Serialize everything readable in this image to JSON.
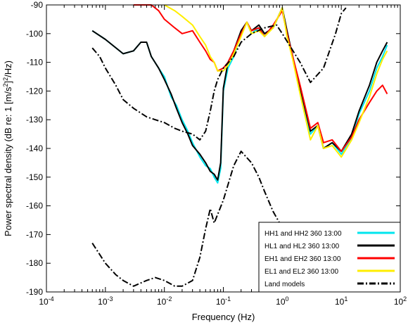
{
  "chart_data": {
    "type": "line",
    "xlabel": "Frequency (Hz)",
    "ylabel": "Power spectral density (dB re: 1 [m/s",
    "ylabel_sup": "2",
    "ylabel_tail": "]",
    "ylabel_sup2": "2",
    "ylabel_end": "/Hz)",
    "x_scale": "log",
    "xlim": [
      0.0001,
      100
    ],
    "ylim": [
      -190,
      -90
    ],
    "x_ticks": [
      {
        "base": "10",
        "exp": "-4"
      },
      {
        "base": "10",
        "exp": "-3"
      },
      {
        "base": "10",
        "exp": "-2"
      },
      {
        "base": "10",
        "exp": "-1"
      },
      {
        "base": "10",
        "exp": "0"
      },
      {
        "base": "10",
        "exp": "1"
      },
      {
        "base": "10",
        "exp": "2"
      }
    ],
    "y_ticks": [
      "-90",
      "-100",
      "-110",
      "-120",
      "-130",
      "-140",
      "-150",
      "-160",
      "-170",
      "-180",
      "-190"
    ],
    "grid": false,
    "legend_position": "bottom-right",
    "series": [
      {
        "name": "HH1 and HH2 360 13:00",
        "color": "#00e5ee",
        "style": "solid",
        "x": [
          0.0006,
          0.001,
          0.002,
          0.003,
          0.004,
          0.005,
          0.006,
          0.008,
          0.01,
          0.013,
          0.016,
          0.02,
          0.025,
          0.03,
          0.04,
          0.05,
          0.06,
          0.07,
          0.08,
          0.09,
          0.1,
          0.12,
          0.15,
          0.2,
          0.25,
          0.3,
          0.4,
          0.5,
          0.7,
          1.0,
          1.2,
          1.5,
          2.0,
          3.0,
          4.0,
          5.0,
          7.0,
          10.0,
          15.0,
          20.0,
          30.0,
          40.0,
          50.0,
          60.0
        ],
        "y": [
          -99,
          -102,
          -107,
          -106,
          -103,
          -103,
          -108,
          -112,
          -115,
          -122,
          -125,
          -130,
          -134,
          -138,
          -143,
          -146,
          -147,
          -150,
          -152,
          -147,
          -120,
          -112,
          -108,
          -100,
          -96,
          -100,
          -98,
          -100,
          -98,
          -91,
          -100,
          -108,
          -120,
          -135,
          -132,
          -140,
          -138,
          -142,
          -136,
          -128,
          -120,
          -112,
          -108,
          -104
        ]
      },
      {
        "name": "HL1 and HL2 360 13:00",
        "color": "#000000",
        "style": "solid",
        "x": [
          0.0006,
          0.001,
          0.002,
          0.003,
          0.004,
          0.005,
          0.006,
          0.008,
          0.01,
          0.013,
          0.016,
          0.02,
          0.025,
          0.03,
          0.04,
          0.05,
          0.06,
          0.07,
          0.08,
          0.09,
          0.1,
          0.12,
          0.15,
          0.2,
          0.25,
          0.3,
          0.4,
          0.5,
          0.7,
          1.0,
          1.2,
          1.5,
          2.0,
          3.0,
          4.0,
          5.0,
          7.0,
          10.0,
          15.0,
          20.0,
          30.0,
          40.0,
          50.0,
          60.0
        ],
        "y": [
          -99,
          -102,
          -107,
          -106,
          -103,
          -103,
          -108,
          -112,
          -116,
          -121,
          -126,
          -131,
          -135,
          -139,
          -142,
          -145,
          -148,
          -149,
          -151,
          -145,
          -119,
          -110,
          -106,
          -99,
          -96,
          -99,
          -97,
          -100,
          -98,
          -91,
          -99,
          -108,
          -119,
          -134,
          -132,
          -140,
          -138,
          -141,
          -135,
          -127,
          -118,
          -110,
          -106,
          -103
        ]
      },
      {
        "name": "EH1 and EH2 360 13:00",
        "color": "#ff0000",
        "style": "solid",
        "x": [
          0.003,
          0.004,
          0.005,
          0.006,
          0.008,
          0.01,
          0.015,
          0.02,
          0.03,
          0.04,
          0.05,
          0.06,
          0.07,
          0.08,
          0.1,
          0.12,
          0.15,
          0.2,
          0.25,
          0.3,
          0.4,
          0.5,
          0.7,
          1.0,
          1.2,
          1.5,
          2.0,
          3.0,
          4.0,
          5.0,
          7.0,
          10.0,
          15.0,
          20.0,
          30.0,
          40.0,
          50.0,
          60.0
        ],
        "y": [
          -90,
          -90,
          -90,
          -90,
          -92,
          -95,
          -98,
          -100,
          -99,
          -103,
          -106,
          -109,
          -110,
          -113,
          -112,
          -110,
          -106,
          -100,
          -96,
          -99,
          -98,
          -101,
          -97,
          -92,
          -100,
          -108,
          -118,
          -133,
          -131,
          -138,
          -137,
          -141,
          -136,
          -130,
          -124,
          -120,
          -118,
          -121
        ]
      },
      {
        "name": "EL1 and EL2 360 13:00",
        "color": "#ffee00",
        "style": "solid",
        "x": [
          0.01,
          0.015,
          0.02,
          0.03,
          0.04,
          0.05,
          0.06,
          0.07,
          0.08,
          0.1,
          0.12,
          0.15,
          0.2,
          0.25,
          0.3,
          0.4,
          0.5,
          0.7,
          1.0,
          1.2,
          1.5,
          2.0,
          3.0,
          4.0,
          5.0,
          7.0,
          10.0,
          15.0,
          20.0,
          30.0,
          40.0,
          50.0,
          60.0
        ],
        "y": [
          -90,
          -92,
          -94,
          -97,
          -101,
          -104,
          -108,
          -110,
          -113,
          -113,
          -111,
          -107,
          -101,
          -96,
          -100,
          -99,
          -101,
          -98,
          -91,
          -101,
          -109,
          -121,
          -137,
          -132,
          -140,
          -139,
          -143,
          -137,
          -131,
          -122,
          -114,
          -109,
          -106
        ]
      },
      {
        "name": "Land models",
        "color": "#000000",
        "style": "dashdot",
        "segments": [
          {
            "x": [
              0.0006,
              0.0008,
              0.001,
              0.0015,
              0.002,
              0.003,
              0.005,
              0.007,
              0.01,
              0.015,
              0.02,
              0.03,
              0.04,
              0.05,
              0.06,
              0.07,
              0.08,
              0.1,
              0.15,
              0.2,
              0.3,
              0.5,
              0.8,
              1.0,
              2.0,
              3.0,
              5.0,
              8.0,
              10.0,
              12.0
            ],
            "y": [
              -105,
              -108,
              -112,
              -118,
              -123,
              -126,
              -129,
              -130,
              -131,
              -133,
              -134,
              -135,
              -137,
              -134,
              -127,
              -120,
              -116,
              -112,
              -108,
              -103,
              -100,
              -98,
              -97,
              -100,
              -110,
              -117,
              -112,
              -100,
              -93,
              -91
            ]
          },
          {
            "x": [
              0.0006,
              0.001,
              0.0015,
              0.002,
              0.003,
              0.005,
              0.007,
              0.01,
              0.015,
              0.02,
              0.03,
              0.04,
              0.05,
              0.06,
              0.07,
              0.1,
              0.15,
              0.2,
              0.3,
              0.4,
              0.5,
              0.7,
              0.9
            ],
            "y": [
              -173,
              -180,
              -184,
              -186,
              -188,
              -186,
              -185,
              -186,
              -188,
              -188,
              -186,
              -178,
              -168,
              -161,
              -166,
              -158,
              -146,
              -141,
              -145,
              -150,
              -155,
              -162,
              -166
            ]
          }
        ]
      }
    ]
  }
}
